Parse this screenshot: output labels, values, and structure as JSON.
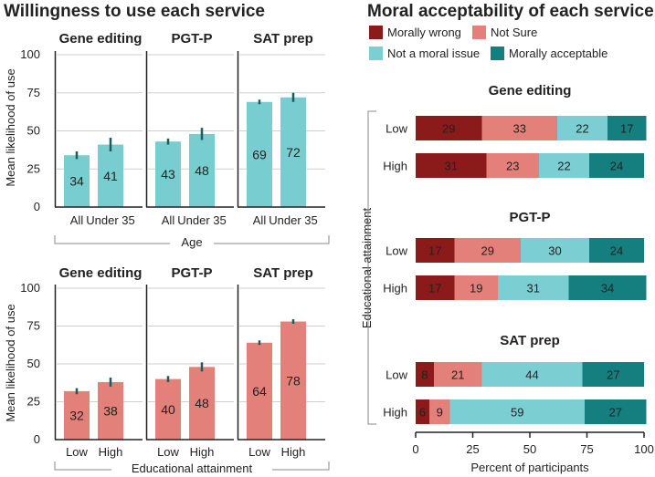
{
  "colors": {
    "teal_light": "#78cdd0",
    "salmon": "#e3807a",
    "wrong": "#8b1a1a",
    "notsure": "#e3807a",
    "notmoral": "#7bcfd3",
    "acceptable": "#157f7f",
    "errorbar": "#1d5c5a"
  },
  "chart_data": [
    {
      "type": "bar",
      "title": "Willingness to use each service",
      "group_axis_label": "Age",
      "ylabel": "Mean likelihood of use",
      "ylim": [
        0,
        100
      ],
      "yticks": [
        0,
        25,
        50,
        75,
        100
      ],
      "categories": [
        "All",
        "Under 35"
      ],
      "panels": [
        {
          "title": "Gene editing",
          "values": [
            34,
            41
          ],
          "err": [
            2.5,
            4.5
          ]
        },
        {
          "title": "PGT-P",
          "values": [
            43,
            48
          ],
          "err": [
            2,
            4
          ]
        },
        {
          "title": "SAT prep",
          "values": [
            69,
            72
          ],
          "err": [
            1.5,
            3
          ]
        }
      ]
    },
    {
      "type": "bar",
      "title": "",
      "group_axis_label": "Educational attainment",
      "ylabel": "Mean likelihood of use",
      "ylim": [
        0,
        100
      ],
      "yticks": [
        0,
        25,
        50,
        75,
        100
      ],
      "categories": [
        "Low",
        "High"
      ],
      "panels": [
        {
          "title": "Gene editing",
          "values": [
            32,
            38
          ],
          "err": [
            2,
            3
          ]
        },
        {
          "title": "PGT-P",
          "values": [
            40,
            48
          ],
          "err": [
            2,
            3
          ]
        },
        {
          "title": "SAT prep",
          "values": [
            64,
            78
          ],
          "err": [
            1.5,
            1.5
          ]
        }
      ]
    },
    {
      "type": "bar",
      "orientation": "horizontal-stacked",
      "title": "Moral acceptability of each service",
      "xlabel": "Percent of participants",
      "ylabel": "Educational attainment",
      "xlim": [
        0,
        100
      ],
      "xticks": [
        0,
        25,
        50,
        75,
        100
      ],
      "legend": [
        "Morally wrong",
        "Not Sure",
        "Not a moral issue",
        "Morally acceptable"
      ],
      "categories": [
        "Low",
        "High"
      ],
      "panels": [
        {
          "title": "Gene editing",
          "rows": [
            [
              29,
              33,
              22,
              17
            ],
            [
              31,
              23,
              22,
              24
            ]
          ]
        },
        {
          "title": "PGT-P",
          "rows": [
            [
              17,
              29,
              30,
              24
            ],
            [
              17,
              19,
              31,
              34
            ]
          ]
        },
        {
          "title": "SAT prep",
          "rows": [
            [
              8,
              21,
              44,
              27
            ],
            [
              6,
              9,
              59,
              27
            ]
          ]
        }
      ]
    }
  ]
}
